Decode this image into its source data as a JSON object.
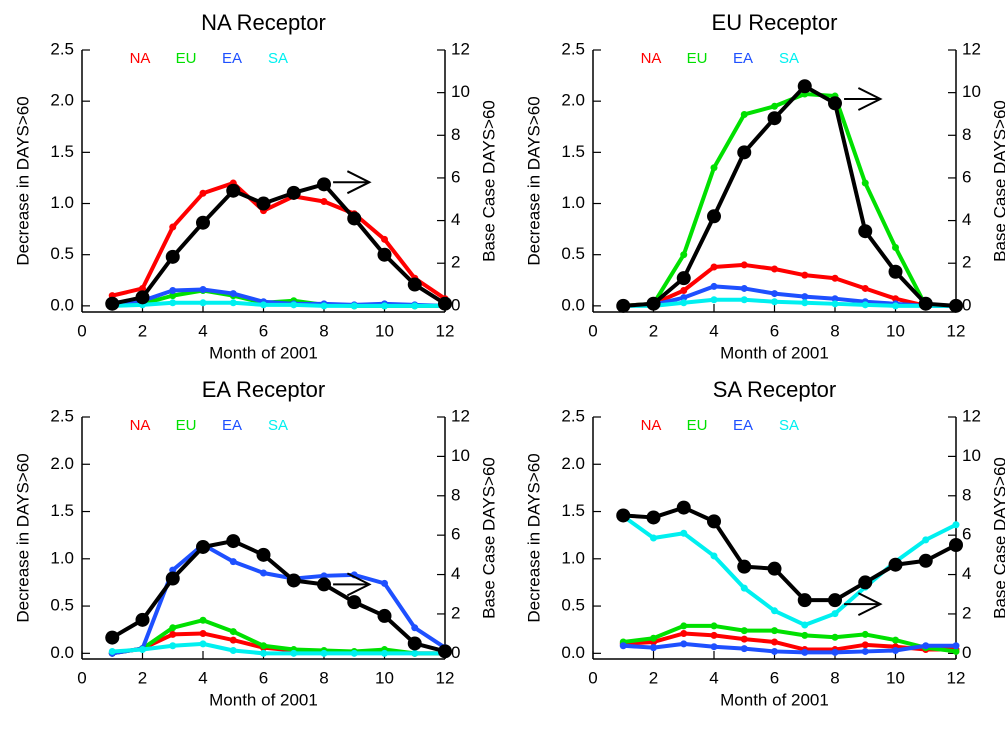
{
  "chart_data": [
    {
      "type": "line",
      "title": "NA Receptor",
      "xlabel": "Month of 2001",
      "ylabel": "Decrease in DAYS>60",
      "y2label": "Base Case DAYS>60",
      "x": [
        1,
        2,
        3,
        4,
        5,
        6,
        7,
        8,
        9,
        10,
        11,
        12
      ],
      "xlim": [
        0,
        12
      ],
      "xticks": [
        0,
        2,
        4,
        6,
        8,
        10,
        12
      ],
      "ylim": [
        -0.06,
        2.5
      ],
      "yticks": [
        {
          "value": 0,
          "label": "0.0"
        },
        0.5,
        {
          "value": 1,
          "label": "1.0"
        },
        1.5,
        {
          "value": 2,
          "label": "2.0"
        },
        2.5
      ],
      "y2lim": [
        -0.288,
        12
      ],
      "y2ticks": [
        0,
        2,
        4,
        6,
        8,
        10,
        12
      ],
      "series": [
        {
          "name": "NA",
          "color": "#ff0000",
          "values": [
            0.1,
            0.17,
            0.77,
            1.1,
            1.2,
            0.93,
            1.07,
            1.02,
            0.9,
            0.65,
            0.27,
            0.07
          ]
        },
        {
          "name": "EU",
          "color": "#00e000",
          "values": [
            0,
            0.02,
            0.1,
            0.15,
            0.1,
            0.03,
            0.05,
            0.01,
            0,
            0,
            0,
            0
          ]
        },
        {
          "name": "EA",
          "color": "#1e50ff",
          "values": [
            0.03,
            0.05,
            0.15,
            0.16,
            0.12,
            0.04,
            0.02,
            0.02,
            0.01,
            0.02,
            0.01,
            0
          ]
        },
        {
          "name": "SA",
          "color": "#00f0f0",
          "values": [
            0,
            0.01,
            0.03,
            0.03,
            0.03,
            0.01,
            0.01,
            0,
            0,
            0,
            0,
            0
          ]
        },
        {
          "color": "#000000",
          "axis": "y2",
          "values": [
            0.1,
            0.4,
            2.3,
            3.9,
            5.4,
            4.8,
            5.3,
            5.7,
            4.1,
            2.4,
            1.0,
            0.1
          ]
        }
      ]
    },
    {
      "type": "line",
      "title": "EU Receptor",
      "xlabel": "Month of 2001",
      "ylabel": "Decrease in DAYS>60",
      "y2label": "Base Case DAYS>60",
      "x": [
        1,
        2,
        3,
        4,
        5,
        6,
        7,
        8,
        9,
        10,
        11,
        12
      ],
      "xlim": [
        0,
        12
      ],
      "xticks": [
        0,
        2,
        4,
        6,
        8,
        10,
        12
      ],
      "ylim": [
        -0.06,
        2.5
      ],
      "yticks": [
        {
          "value": 0,
          "label": "0.0"
        },
        0.5,
        {
          "value": 1,
          "label": "1.0"
        },
        1.5,
        {
          "value": 2,
          "label": "2.0"
        },
        2.5
      ],
      "y2lim": [
        -0.288,
        12
      ],
      "y2ticks": [
        0,
        2,
        4,
        6,
        8,
        10,
        12
      ],
      "series": [
        {
          "name": "NA",
          "color": "#ff0000",
          "values": [
            0,
            0.02,
            0.15,
            0.38,
            0.4,
            0.36,
            0.3,
            0.27,
            0.17,
            0.07,
            0,
            0
          ]
        },
        {
          "name": "EU",
          "color": "#00e000",
          "values": [
            0,
            0.02,
            0.5,
            1.35,
            1.87,
            1.95,
            2.07,
            2.05,
            1.2,
            0.57,
            0,
            0
          ]
        },
        {
          "name": "EA",
          "color": "#1e50ff",
          "values": [
            0,
            0.01,
            0.08,
            0.19,
            0.17,
            0.12,
            0.09,
            0.07,
            0.04,
            0.02,
            0,
            0
          ]
        },
        {
          "name": "SA",
          "color": "#00f0f0",
          "values": [
            0,
            0,
            0.03,
            0.06,
            0.06,
            0.04,
            0.03,
            0.02,
            0.01,
            0,
            0,
            0
          ]
        },
        {
          "color": "#000000",
          "axis": "y2",
          "values": [
            0,
            0.1,
            1.3,
            4.2,
            7.2,
            8.8,
            10.3,
            9.5,
            3.5,
            1.6,
            0.1,
            0
          ]
        }
      ]
    },
    {
      "type": "line",
      "title": "EA Receptor",
      "xlabel": "Month of 2001",
      "ylabel": "Decrease in DAYS>60",
      "y2label": "Base Case DAYS>60",
      "x": [
        1,
        2,
        3,
        4,
        5,
        6,
        7,
        8,
        9,
        10,
        11,
        12
      ],
      "xlim": [
        0,
        12
      ],
      "xticks": [
        0,
        2,
        4,
        6,
        8,
        10,
        12
      ],
      "ylim": [
        -0.06,
        2.5
      ],
      "yticks": [
        {
          "value": 0,
          "label": "0.0"
        },
        0.5,
        {
          "value": 1,
          "label": "1.0"
        },
        1.5,
        {
          "value": 2,
          "label": "2.0"
        },
        2.5
      ],
      "y2lim": [
        -0.288,
        12
      ],
      "y2ticks": [
        0,
        2,
        4,
        6,
        8,
        10,
        12
      ],
      "series": [
        {
          "name": "NA",
          "color": "#ff0000",
          "values": [
            0,
            0.05,
            0.2,
            0.21,
            0.14,
            0.06,
            0.03,
            0.02,
            0.01,
            0.02,
            0,
            0
          ]
        },
        {
          "name": "EU",
          "color": "#00e000",
          "values": [
            0,
            0.05,
            0.27,
            0.35,
            0.23,
            0.08,
            0.04,
            0.03,
            0.02,
            0.04,
            0,
            0
          ]
        },
        {
          "name": "EA",
          "color": "#1e50ff",
          "values": [
            0,
            0.05,
            0.88,
            1.15,
            0.97,
            0.85,
            0.79,
            0.82,
            0.83,
            0.74,
            0.27,
            0.06
          ]
        },
        {
          "name": "SA",
          "color": "#00f0f0",
          "values": [
            0.02,
            0.04,
            0.08,
            0.1,
            0.03,
            0,
            0,
            0,
            0,
            0,
            0,
            0
          ]
        },
        {
          "color": "#000000",
          "axis": "y2",
          "values": [
            0.8,
            1.7,
            3.8,
            5.4,
            5.7,
            5.0,
            3.7,
            3.5,
            2.6,
            1.9,
            0.5,
            0.1
          ]
        }
      ]
    },
    {
      "type": "line",
      "title": "SA Receptor",
      "xlabel": "Month of 2001",
      "ylabel": "Decrease in DAYS>60",
      "y2label": "Base Case DAYS>60",
      "x": [
        1,
        2,
        3,
        4,
        5,
        6,
        7,
        8,
        9,
        10,
        11,
        12
      ],
      "xlim": [
        0,
        12
      ],
      "xticks": [
        0,
        2,
        4,
        6,
        8,
        10,
        12
      ],
      "ylim": [
        -0.06,
        2.5
      ],
      "yticks": [
        {
          "value": 0,
          "label": "0.0"
        },
        0.5,
        {
          "value": 1,
          "label": "1.0"
        },
        1.5,
        {
          "value": 2,
          "label": "2.0"
        },
        2.5
      ],
      "y2lim": [
        -0.288,
        12
      ],
      "y2ticks": [
        0,
        2,
        4,
        6,
        8,
        10,
        12
      ],
      "series": [
        {
          "name": "NA",
          "color": "#ff0000",
          "values": [
            0.1,
            0.12,
            0.21,
            0.19,
            0.15,
            0.12,
            0.04,
            0.04,
            0.09,
            0.07,
            0.04,
            0.04
          ]
        },
        {
          "name": "EU",
          "color": "#00e000",
          "values": [
            0.12,
            0.16,
            0.29,
            0.29,
            0.24,
            0.24,
            0.19,
            0.17,
            0.2,
            0.14,
            0.06,
            0.02
          ]
        },
        {
          "name": "EA",
          "color": "#1e50ff",
          "values": [
            0.08,
            0.06,
            0.1,
            0.07,
            0.05,
            0.02,
            0.01,
            0.01,
            0.02,
            0.03,
            0.08,
            0.08
          ]
        },
        {
          "name": "SA",
          "color": "#00f0f0",
          "values": [
            1.45,
            1.22,
            1.27,
            1.03,
            0.69,
            0.45,
            0.3,
            0.42,
            0.7,
            0.97,
            1.2,
            1.36
          ]
        },
        {
          "color": "#000000",
          "axis": "y2",
          "values": [
            7.0,
            6.9,
            7.4,
            6.7,
            4.4,
            4.3,
            2.7,
            2.7,
            3.6,
            4.5,
            4.7,
            5.5
          ]
        }
      ]
    }
  ]
}
